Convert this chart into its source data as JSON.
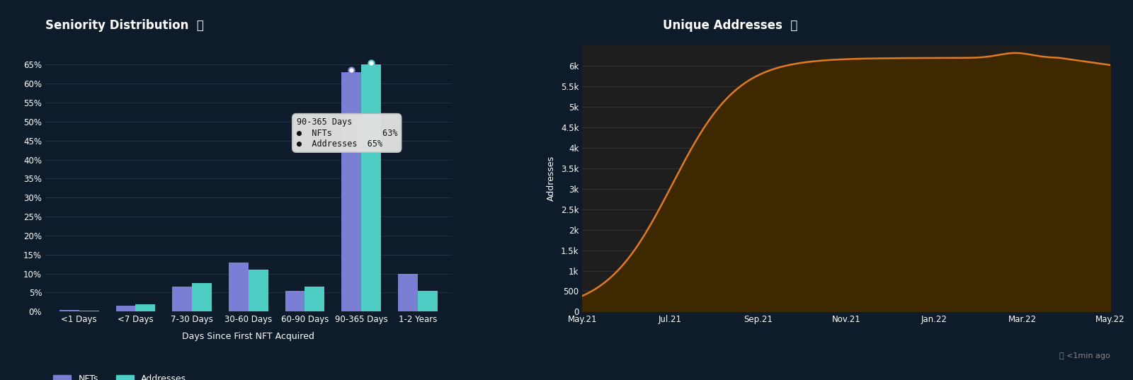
{
  "bg_color": "#0d1b2a",
  "left_chart": {
    "title": "Seniority Distribution",
    "xlabel": "Days Since First NFT Acquired",
    "categories": [
      "<1 Days",
      "<7 Days",
      "7-30 Days",
      "30-60 Days",
      "60-90 Days",
      "90-365 Days",
      "1-2 Years"
    ],
    "nfts": [
      0.5,
      1.5,
      6.5,
      13.0,
      5.5,
      63.0,
      10.0
    ],
    "addresses": [
      0.3,
      2.0,
      7.5,
      11.0,
      6.5,
      65.0,
      5.5
    ],
    "yticks": [
      0,
      5,
      10,
      15,
      20,
      25,
      30,
      35,
      40,
      45,
      50,
      55,
      60,
      65
    ],
    "ylim": [
      0,
      70
    ],
    "nft_color": "#7b7fd4",
    "addr_color": "#4ecdc4",
    "tooltip_category": "90-365 Days",
    "tooltip_nft": 63,
    "tooltip_addr": 65
  },
  "right_chart": {
    "title": "Unique Addresses",
    "ylabel": "Addresses",
    "x_labels": [
      "May.21",
      "Jul.21",
      "Sep.21",
      "Nov.21",
      "Jan.22",
      "Mar.22",
      "May.22"
    ],
    "yticks": [
      0,
      500,
      1000,
      1500,
      2000,
      2500,
      3000,
      3500,
      4000,
      4500,
      5000,
      5500,
      6000
    ],
    "ylim": [
      0,
      6500
    ],
    "line_color": "#e07b20",
    "fill_color": "#3d2800",
    "bg_color": "#1e1e1e"
  },
  "footer_text": "<1min ago",
  "text_color": "#ffffff",
  "grid_color": "#253545",
  "subtitle_color": "#aaaaaa"
}
